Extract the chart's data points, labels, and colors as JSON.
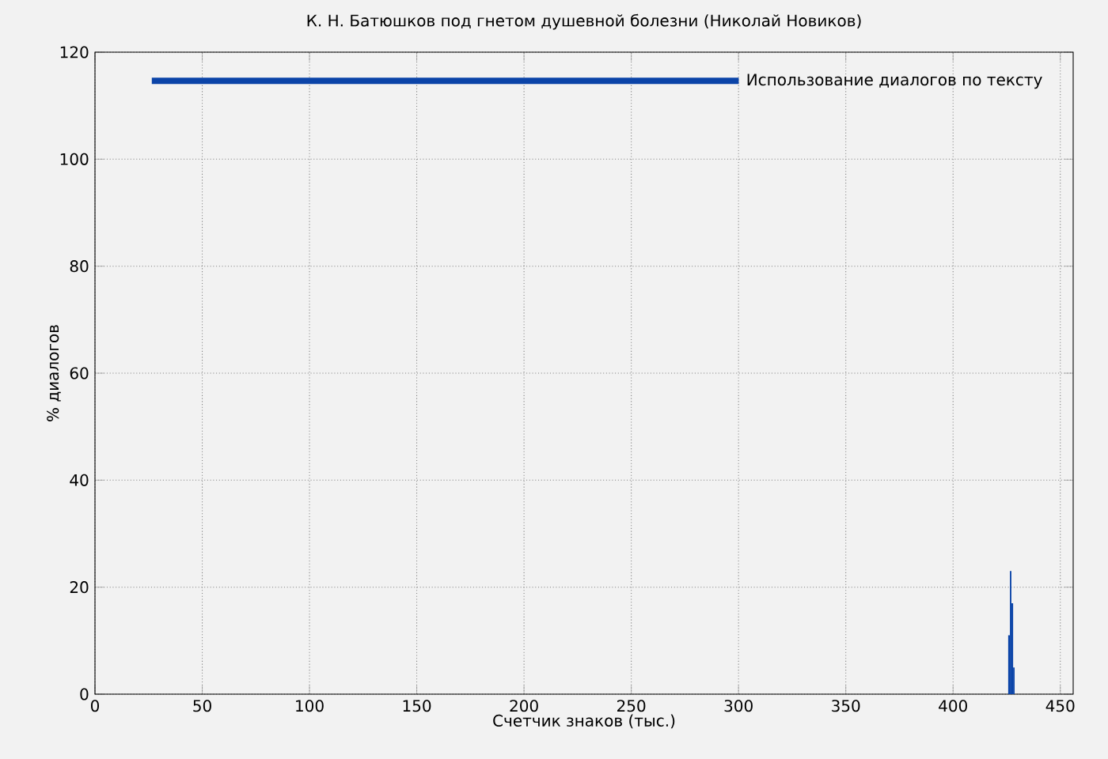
{
  "chart_data": {
    "type": "histogram",
    "title": "К. Н. Батюшков под гнетом душевной болезни (Николай Новиков)",
    "xlabel": "Счетчик знаков (тыс.)",
    "ylabel": "% диалогов",
    "bins": [
      425.7,
      426.5,
      427.2,
      428.0,
      428.7
    ],
    "series": [
      {
        "name": "Использование диалогов по тексту",
        "color": "#0b44a8",
        "values": [
          11,
          23,
          17,
          5
        ]
      }
    ],
    "xlim": [
      0,
      456
    ],
    "ylim": [
      0,
      120
    ],
    "xticks": [
      0,
      50,
      100,
      150,
      200,
      250,
      300,
      350,
      400,
      450
    ],
    "yticks": [
      0,
      20,
      40,
      60,
      80,
      100,
      120
    ],
    "grid": true,
    "legend": "top right"
  }
}
